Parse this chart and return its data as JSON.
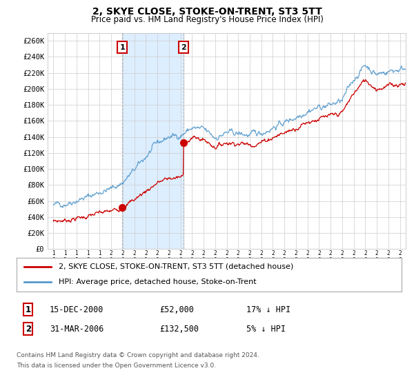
{
  "title": "2, SKYE CLOSE, STOKE-ON-TRENT, ST3 5TT",
  "subtitle": "Price paid vs. HM Land Registry's House Price Index (HPI)",
  "ylabel_ticks": [
    0,
    20000,
    40000,
    60000,
    80000,
    100000,
    120000,
    140000,
    160000,
    180000,
    200000,
    220000,
    240000,
    260000
  ],
  "ylabel_labels": [
    "£0",
    "£20K",
    "£40K",
    "£60K",
    "£80K",
    "£100K",
    "£120K",
    "£140K",
    "£160K",
    "£180K",
    "£200K",
    "£220K",
    "£240K",
    "£260K"
  ],
  "xlim_left": 1994.5,
  "xlim_right": 2025.5,
  "ylim_bottom": 0,
  "ylim_top": 270000,
  "purchase1_year": 2000.96,
  "purchase1_price": 52000,
  "purchase2_year": 2006.25,
  "purchase2_price": 132500,
  "legend_line1": "2, SKYE CLOSE, STOKE-ON-TRENT, ST3 5TT (detached house)",
  "legend_line2": "HPI: Average price, detached house, Stoke-on-Trent",
  "table_row1_num": "1",
  "table_row1_date": "15-DEC-2000",
  "table_row1_price": "£52,000",
  "table_row1_hpi": "17% ↓ HPI",
  "table_row2_num": "2",
  "table_row2_date": "31-MAR-2006",
  "table_row2_price": "£132,500",
  "table_row2_hpi": "5% ↓ HPI",
  "footnote1": "Contains HM Land Registry data © Crown copyright and database right 2024.",
  "footnote2": "This data is licensed under the Open Government Licence v3.0.",
  "property_color": "#cc0000",
  "hpi_color": "#5599cc",
  "shade_color": "#ddeeff",
  "grid_color": "#cccccc",
  "background_color": "#ffffff"
}
